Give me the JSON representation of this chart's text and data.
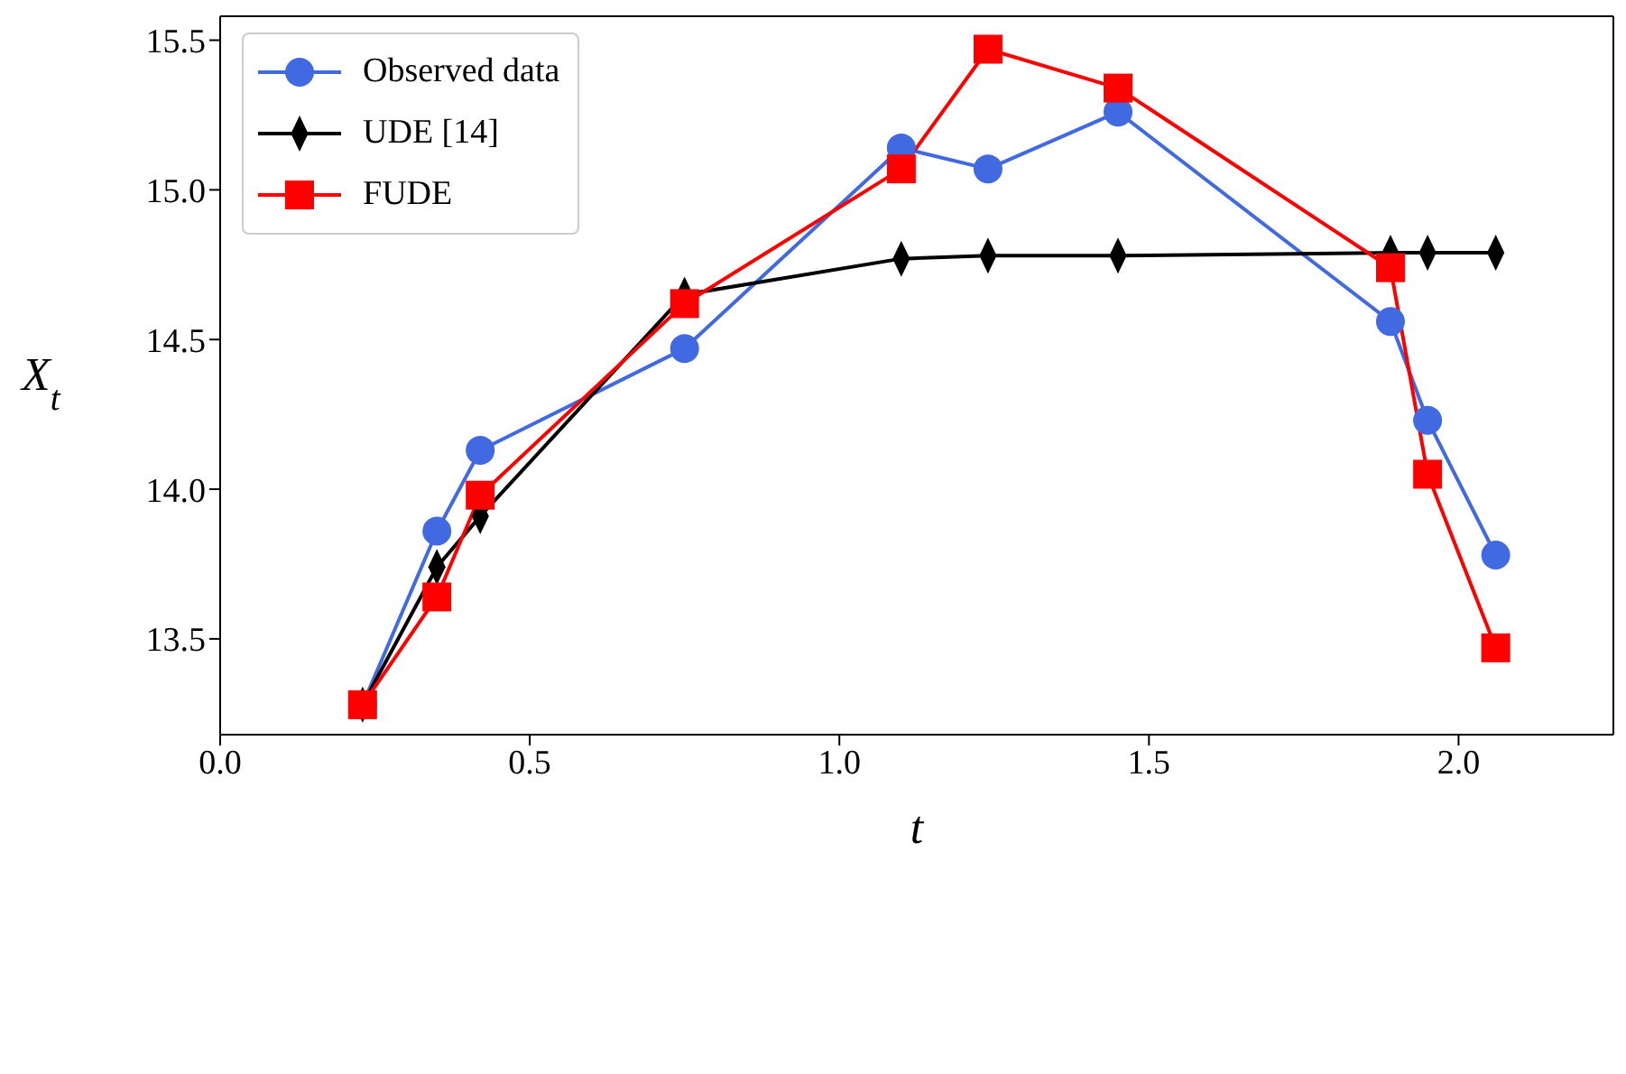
{
  "chart_data": {
    "type": "line",
    "xlabel": "t",
    "ylabel": "X$_{t}$",
    "x": [
      0.23,
      0.35,
      0.42,
      0.75,
      1.1,
      1.24,
      1.45,
      1.89,
      1.95,
      2.06
    ],
    "xlim": [
      0,
      2.25
    ],
    "xticks": [
      {
        "value": 0,
        "label": "0.0"
      },
      {
        "value": 0.5,
        "label": "0.5"
      },
      {
        "value": 1,
        "label": "1.0"
      },
      {
        "value": 1.5,
        "label": "1.5"
      },
      {
        "value": 2,
        "label": "2.0"
      }
    ],
    "ylim": [
      13.18,
      15.58
    ],
    "yticks": [
      {
        "value": 13.5,
        "label": "13.5"
      },
      {
        "value": 14,
        "label": "14.0"
      },
      {
        "value": 14.5,
        "label": "14.5"
      },
      {
        "value": 15,
        "label": "15.0"
      },
      {
        "value": 15.5,
        "label": "15.5"
      }
    ],
    "grid": false,
    "legend": "top left",
    "line_style": "solid",
    "series": [
      {
        "name": "Observed data",
        "color": "#4169e1",
        "marker": "circle",
        "values": [
          13.28,
          13.86,
          14.13,
          14.47,
          15.14,
          15.07,
          15.26,
          14.56,
          14.23,
          13.78
        ]
      },
      {
        "name": "UDE [14]",
        "color": "#000000",
        "marker": "diamond",
        "values": [
          13.28,
          13.74,
          13.91,
          14.65,
          14.77,
          14.78,
          14.78,
          14.79,
          14.79,
          14.79
        ]
      },
      {
        "name": "FUDE",
        "color": "#ff0000",
        "marker": "square",
        "values": [
          13.28,
          13.64,
          13.98,
          14.62,
          15.07,
          15.47,
          15.34,
          14.74,
          14.05,
          13.47
        ]
      }
    ]
  }
}
